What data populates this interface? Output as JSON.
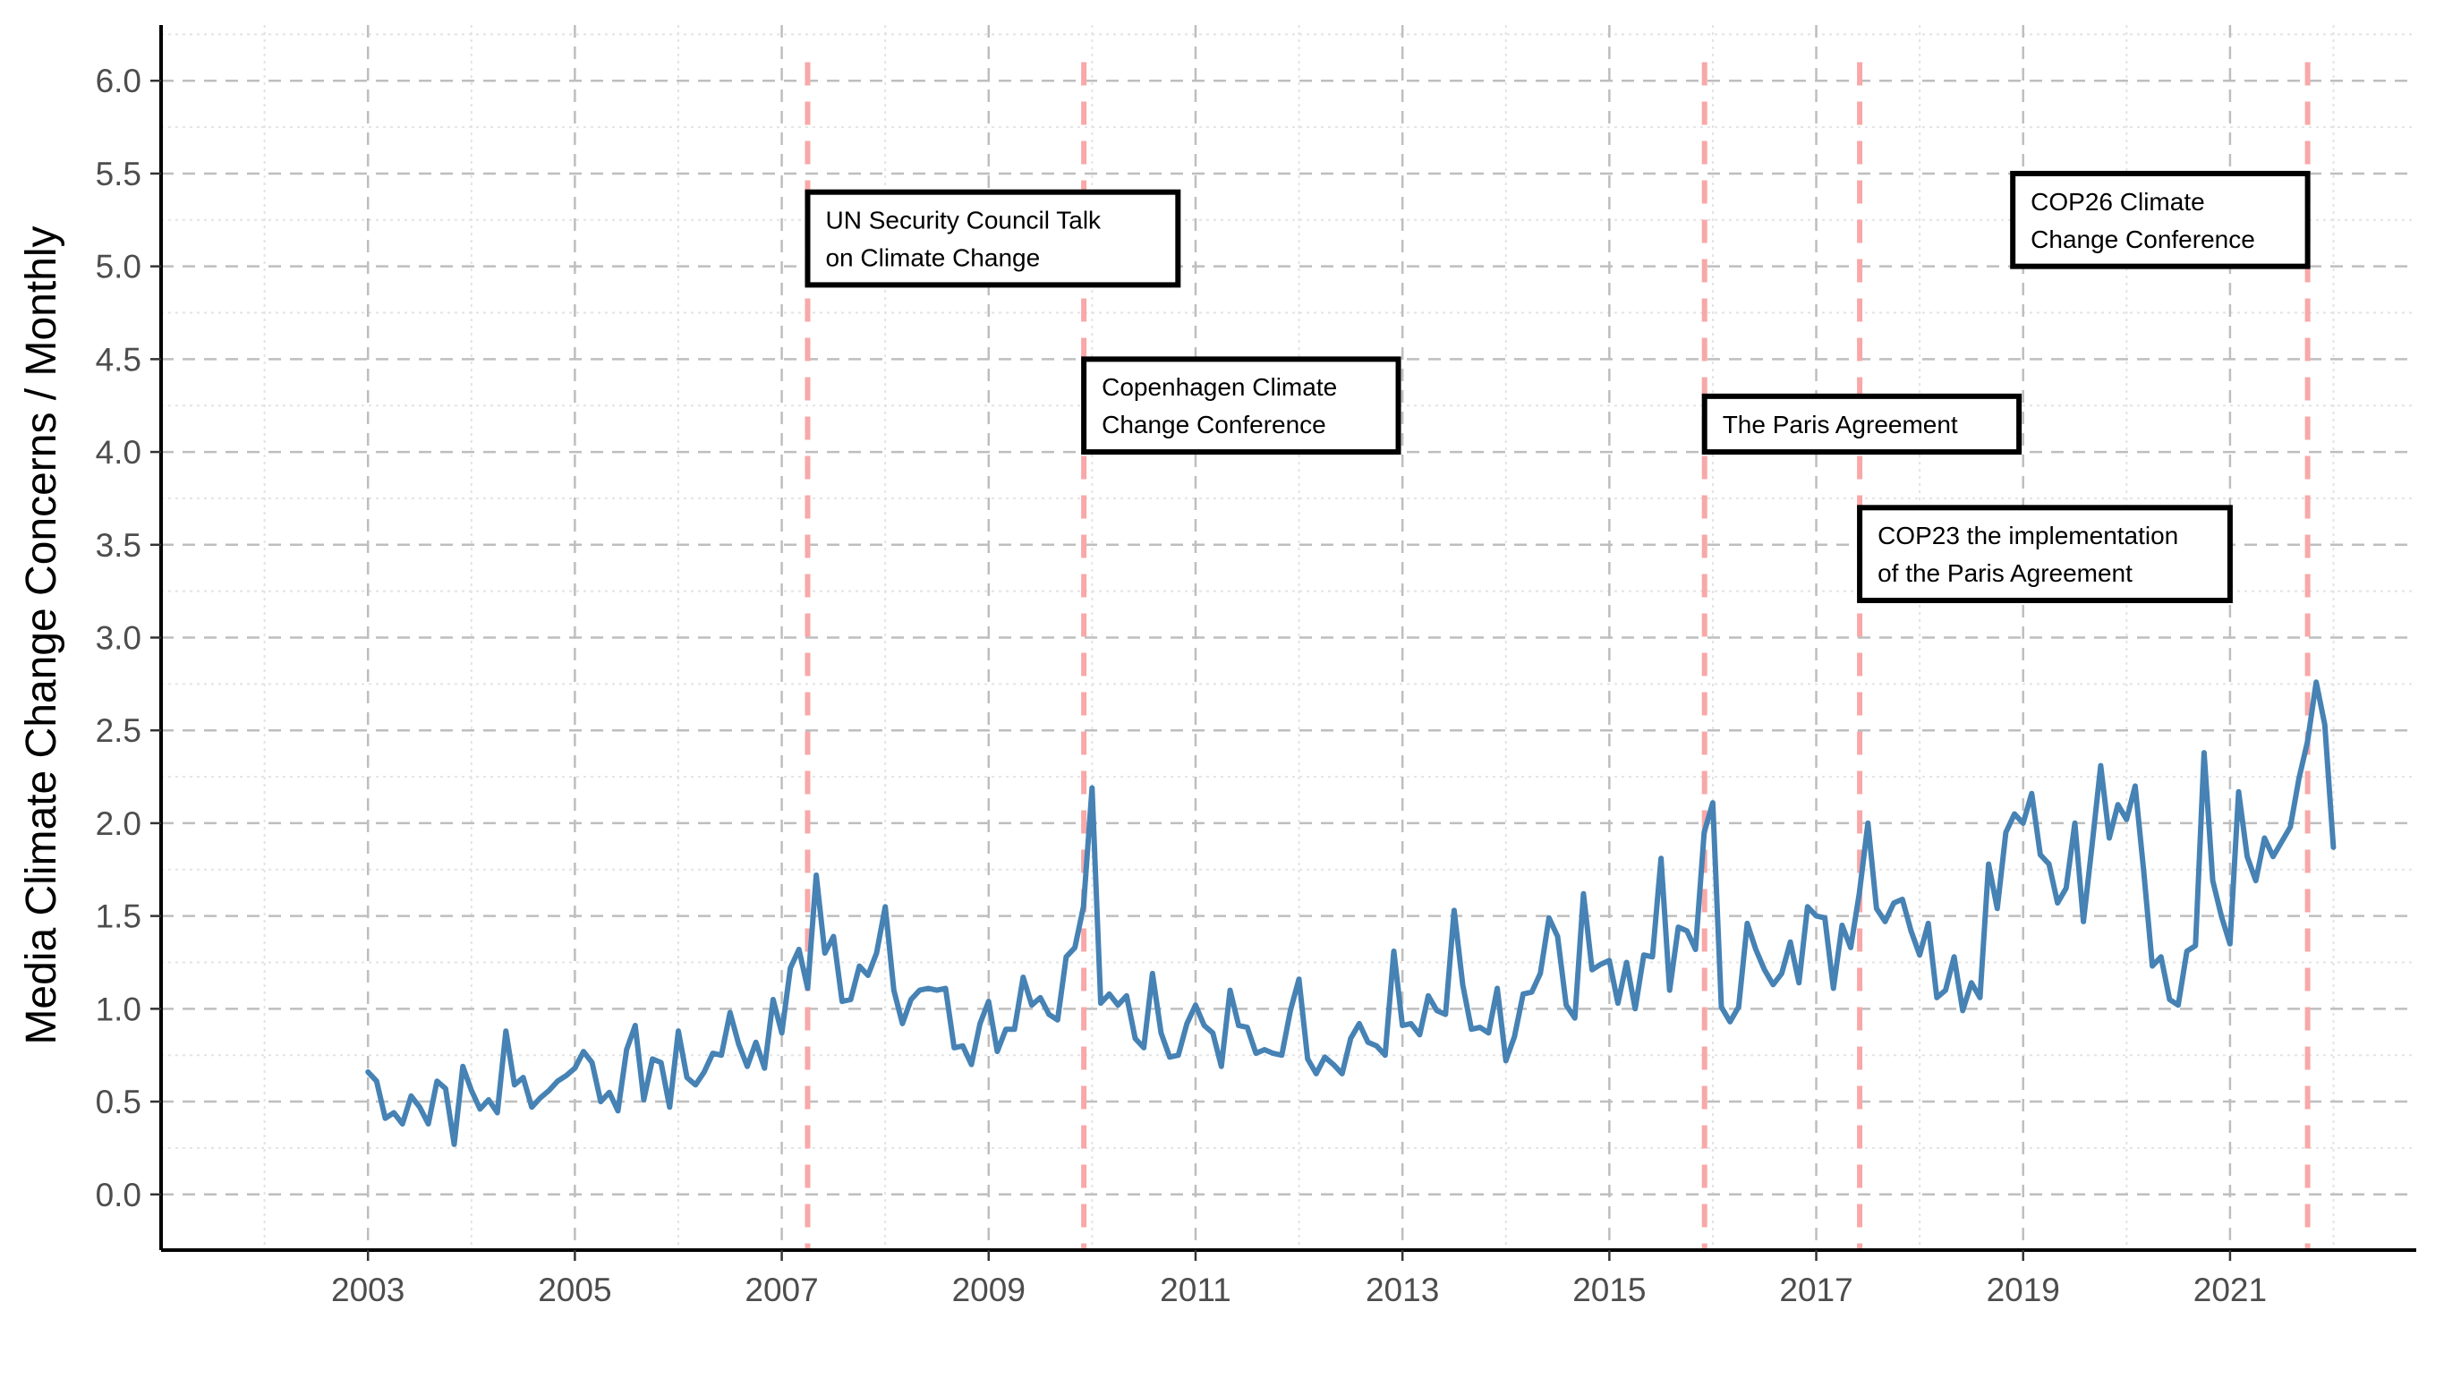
{
  "chart_data": {
    "type": "line",
    "title": "",
    "xlabel": "",
    "ylabel": "Media Climate Change Concerns / Monthly",
    "xlim": [
      2001.0,
      2022.8
    ],
    "ylim": [
      -0.3,
      6.3
    ],
    "grid": true,
    "x_ticks": [
      2003,
      2005,
      2007,
      2009,
      2011,
      2013,
      2015,
      2017,
      2019,
      2021
    ],
    "x_tick_labels": [
      "2003",
      "2005",
      "2007",
      "2009",
      "2011",
      "2013",
      "2015",
      "2017",
      "2019",
      "2021"
    ],
    "y_ticks": [
      0,
      0.5,
      1,
      1.5,
      2,
      2.5,
      3,
      3.5,
      4,
      4.5,
      5,
      5.5,
      6
    ],
    "y_tick_labels": [
      "0.0",
      "0.5",
      "1.0",
      "1.5",
      "2.0",
      "2.5",
      "3.0",
      "3.5",
      "4.0",
      "4.5",
      "5.0",
      "5.5",
      "6.0"
    ],
    "colors": {
      "series": "#4682b4",
      "event_line": "#f8a8a8",
      "grid": "#bebebe",
      "minor_grid": "#e3e3e3",
      "axis": "#000000"
    },
    "series": [
      {
        "name": "Media Climate Change Concerns",
        "x_start": 2003.0,
        "x_step": 0.08333,
        "values": [
          0.66,
          0.61,
          0.41,
          0.44,
          0.38,
          0.53,
          0.47,
          0.38,
          0.61,
          0.57,
          0.27,
          0.69,
          0.56,
          0.46,
          0.51,
          0.44,
          0.88,
          0.59,
          0.63,
          0.47,
          0.52,
          0.56,
          0.61,
          0.64,
          0.68,
          0.77,
          0.71,
          0.5,
          0.55,
          0.45,
          0.78,
          0.91,
          0.51,
          0.73,
          0.71,
          0.47,
          0.88,
          0.63,
          0.59,
          0.66,
          0.76,
          0.75,
          0.98,
          0.81,
          0.69,
          0.82,
          0.68,
          1.05,
          0.87,
          1.22,
          1.32,
          1.11,
          1.72,
          1.3,
          1.39,
          1.04,
          1.05,
          1.23,
          1.18,
          1.3,
          1.55,
          1.1,
          0.92,
          1.05,
          1.1,
          1.11,
          1.1,
          1.11,
          0.79,
          0.8,
          0.7,
          0.92,
          1.04,
          0.77,
          0.89,
          0.89,
          1.17,
          1.02,
          1.06,
          0.97,
          0.94,
          1.28,
          1.33,
          1.55,
          2.19,
          1.03,
          1.08,
          1.02,
          1.07,
          0.84,
          0.79,
          1.19,
          0.87,
          0.74,
          0.75,
          0.92,
          1.02,
          0.91,
          0.87,
          0.69,
          1.1,
          0.91,
          0.9,
          0.76,
          0.78,
          0.76,
          0.75,
          0.99,
          1.16,
          0.73,
          0.65,
          0.74,
          0.7,
          0.65,
          0.84,
          0.92,
          0.82,
          0.8,
          0.75,
          1.31,
          0.91,
          0.92,
          0.86,
          1.07,
          0.99,
          0.97,
          1.53,
          1.13,
          0.89,
          0.9,
          0.87,
          1.11,
          0.72,
          0.85,
          1.08,
          1.09,
          1.19,
          1.49,
          1.39,
          1.02,
          0.95,
          1.62,
          1.21,
          1.24,
          1.26,
          1.03,
          1.25,
          1.0,
          1.29,
          1.28,
          1.81,
          1.1,
          1.44,
          1.42,
          1.32,
          1.95,
          2.11,
          1.01,
          0.93,
          1.01,
          1.46,
          1.32,
          1.21,
          1.13,
          1.19,
          1.36,
          1.14,
          1.55,
          1.5,
          1.49,
          1.11,
          1.45,
          1.33,
          1.62,
          2.0,
          1.54,
          1.47,
          1.57,
          1.59,
          1.42,
          1.29,
          1.46,
          1.06,
          1.1,
          1.28,
          0.99,
          1.14,
          1.06,
          1.78,
          1.54,
          1.95,
          2.05,
          2.0,
          2.16,
          1.83,
          1.78,
          1.57,
          1.65,
          2.0,
          1.47,
          1.88,
          2.31,
          1.92,
          2.1,
          2.02,
          2.2,
          1.74,
          1.23,
          1.28,
          1.05,
          1.02,
          1.31,
          1.34,
          2.38,
          1.69,
          1.5,
          1.35,
          2.17,
          1.82,
          1.69,
          1.92,
          1.82,
          1.9,
          1.98,
          2.24,
          2.44,
          2.76,
          2.53,
          1.87
        ]
      }
    ],
    "events": [
      {
        "x": 2007.25,
        "label_lines": [
          "UN Security Council Talk",
          "on Climate Change"
        ],
        "box_x_range": [
          2007.25,
          2010.83
        ],
        "box_y_range": [
          4.9,
          5.4
        ]
      },
      {
        "x": 2009.92,
        "label_lines": [
          "Copenhagen Climate",
          "Change Conference"
        ],
        "box_x_range": [
          2009.92,
          2012.96
        ],
        "box_y_range": [
          4.0,
          4.5
        ]
      },
      {
        "x": 2015.92,
        "label_lines": [
          "The Paris Agreement"
        ],
        "box_x_range": [
          2015.92,
          2018.96
        ],
        "box_y_range": [
          4.0,
          4.3
        ]
      },
      {
        "x": 2017.42,
        "label_lines": [
          "COP23 the implementation",
          "of the Paris Agreement"
        ],
        "box_x_range": [
          2017.42,
          2021.0
        ],
        "box_y_range": [
          3.2,
          3.7
        ]
      },
      {
        "x": 2021.75,
        "label_lines": [
          "COP26 Climate",
          "Change Conference"
        ],
        "box_x_range": [
          2018.9,
          2021.75
        ],
        "box_y_range": [
          5.0,
          5.5
        ]
      }
    ]
  }
}
